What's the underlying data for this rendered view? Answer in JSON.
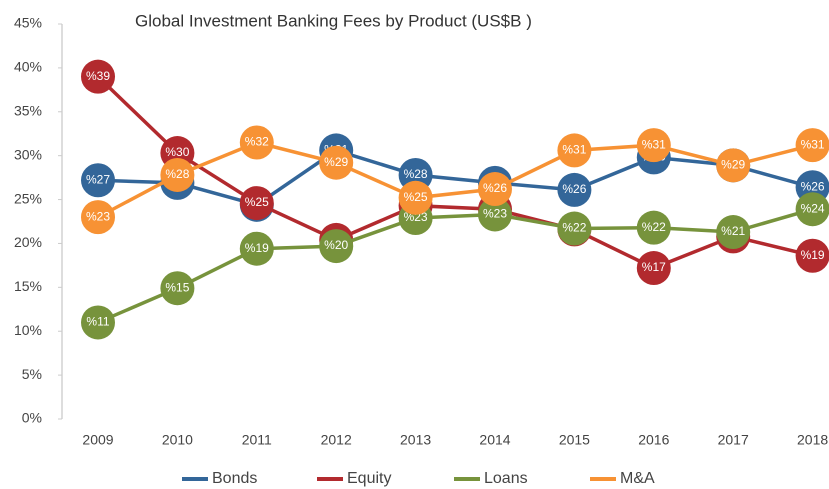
{
  "chart_data": {
    "type": "line",
    "title": "Global Investment Banking Fees by Product (US$B )",
    "categories": [
      "2009",
      "2010",
      "2011",
      "2012",
      "2013",
      "2014",
      "2015",
      "2016",
      "2017",
      "2018"
    ],
    "ylim": [
      0,
      45
    ],
    "yticks": [
      {
        "value": 0,
        "label": "0%"
      },
      {
        "value": 5,
        "label": "5%"
      },
      {
        "value": 10,
        "label": "10%"
      },
      {
        "value": 15,
        "label": "15%"
      },
      {
        "value": 20,
        "label": "20%"
      },
      {
        "value": 25,
        "label": "25%"
      },
      {
        "value": 30,
        "label": "30%"
      },
      {
        "value": 35,
        "label": "35%"
      },
      {
        "value": 40,
        "label": "40%"
      },
      {
        "value": 45,
        "label": "45%"
      }
    ],
    "grid": false,
    "legend": "bottom",
    "series": [
      {
        "name": "Bonds",
        "color": "#336699",
        "values": [
          27.2,
          26.9,
          24.4,
          30.6,
          27.8,
          26.9,
          26.1,
          29.8,
          28.9,
          26.4
        ],
        "value_labels": [
          "%27",
          "%27",
          "%24",
          "%31",
          "%28",
          "%27",
          "%26",
          "%30",
          "%29",
          "%26"
        ]
      },
      {
        "name": "Equity",
        "color": "#b22a2e",
        "values": [
          39.0,
          30.3,
          24.6,
          20.4,
          24.3,
          23.9,
          21.6,
          17.2,
          20.8,
          18.6
        ],
        "value_labels": [
          "%39",
          "%30",
          "%25",
          "%20",
          "%24",
          "%24",
          "%22",
          "%17",
          "%21",
          "%19"
        ]
      },
      {
        "name": "Loans",
        "color": "#77933c",
        "values": [
          11.0,
          14.9,
          19.4,
          19.7,
          22.9,
          23.3,
          21.7,
          21.8,
          21.3,
          23.9
        ],
        "value_labels": [
          "%11",
          "%15",
          "%19",
          "%20",
          "%23",
          "%23",
          "%22",
          "%22",
          "%21",
          "%24"
        ]
      },
      {
        "name": "M&A",
        "color": "#f79234",
        "values": [
          23.0,
          27.8,
          31.5,
          29.2,
          25.2,
          26.2,
          30.6,
          31.2,
          28.9,
          31.2
        ],
        "value_labels": [
          "%23",
          "%28",
          "%32",
          "%29",
          "%25",
          "%26",
          "%31",
          "%31",
          "%29",
          "%31"
        ]
      }
    ]
  }
}
